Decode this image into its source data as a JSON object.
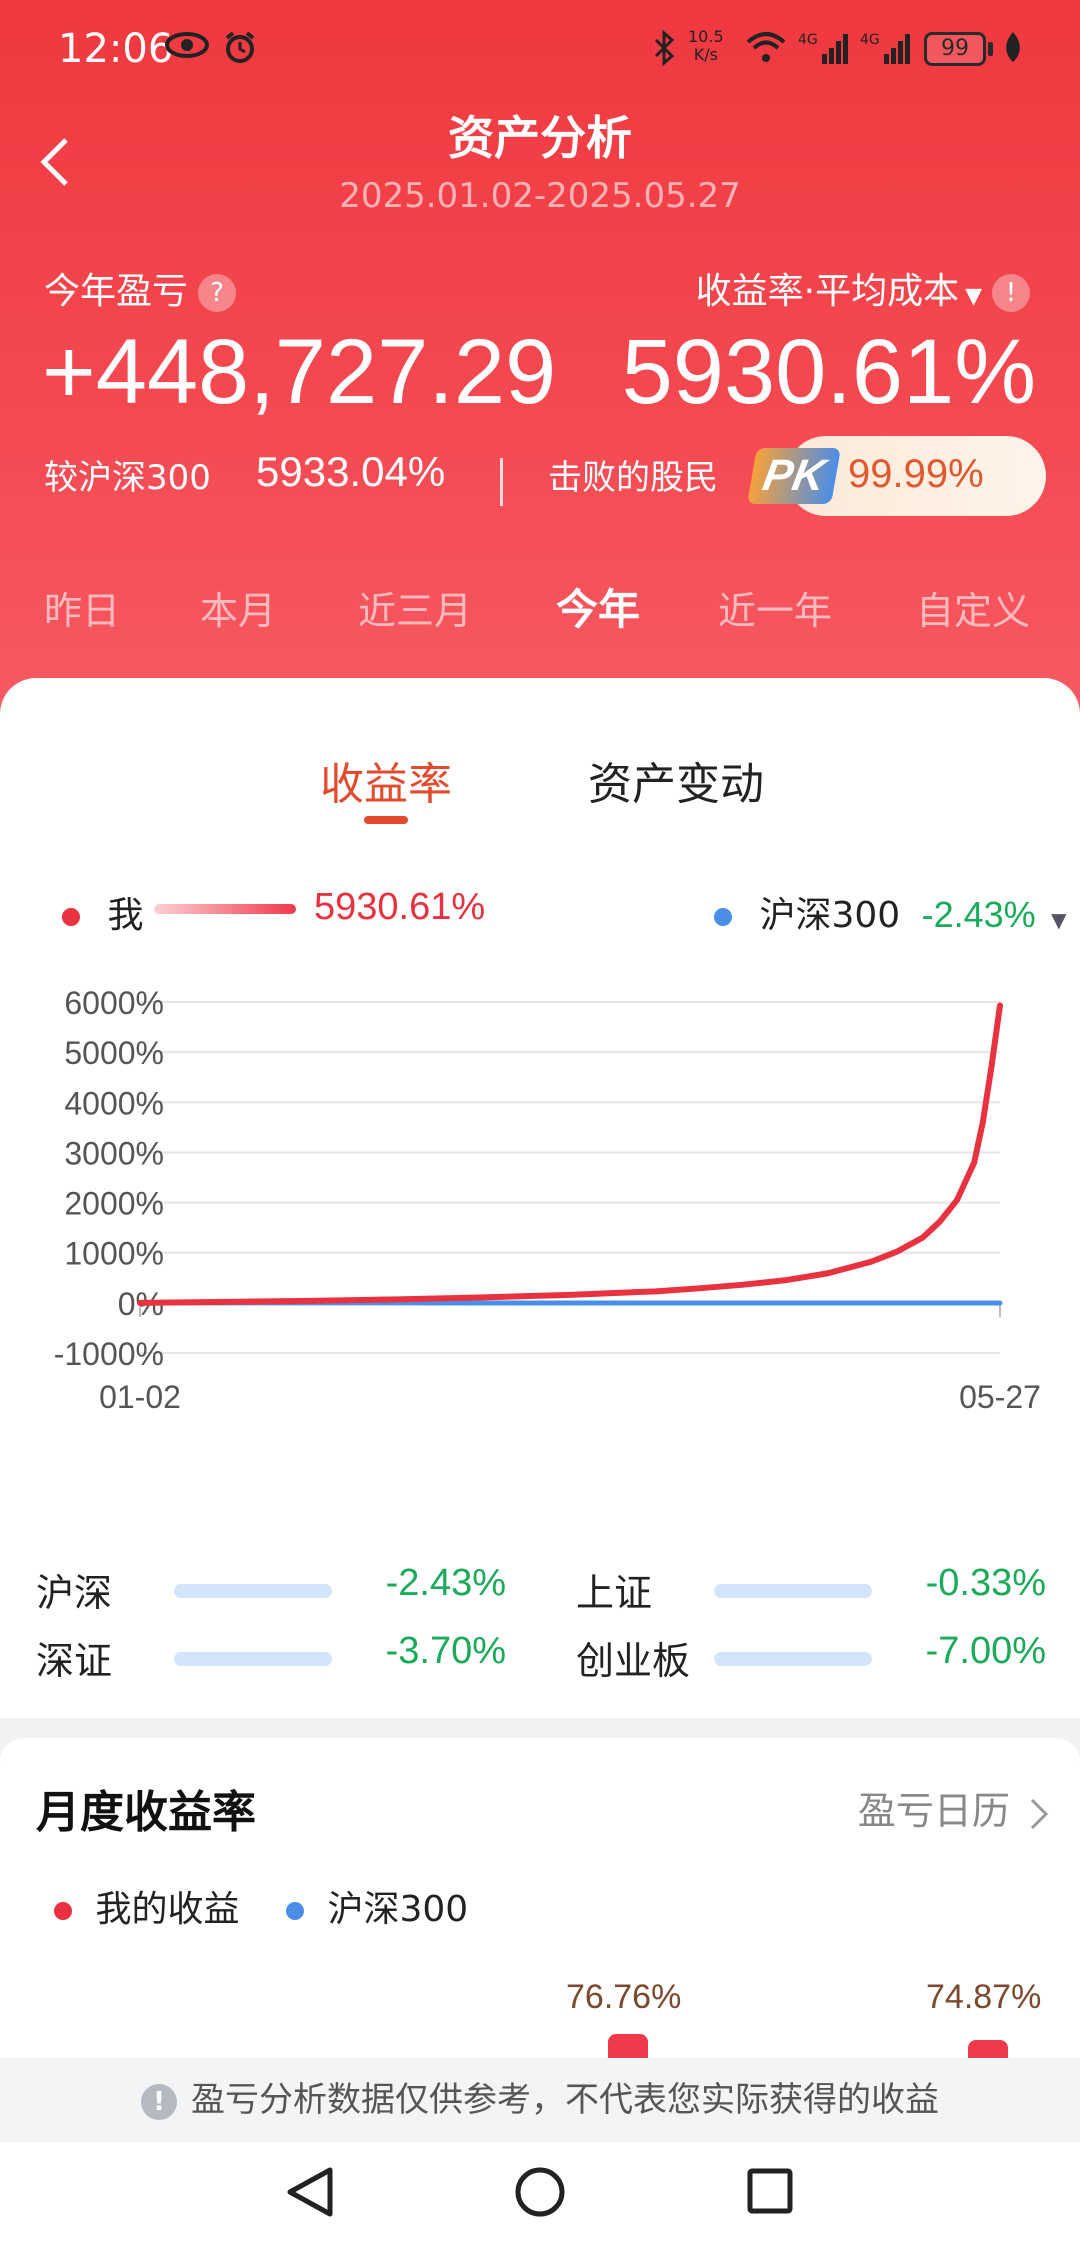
{
  "status_bar": {
    "time": "12:06",
    "net_speed_value": "10.5",
    "net_speed_unit": "K/s",
    "battery": "99"
  },
  "header": {
    "title": "资产分析",
    "date_range": "2025.01.02-2025.05.27"
  },
  "summary": {
    "pnl_label": "今年盈亏",
    "pnl_help": "?",
    "pnl_value": "+448,727.29",
    "rate_label": "收益率·平均成本",
    "rate_info": "!",
    "rate_value": "5930.61%",
    "vs_hs300_label": "较沪深300",
    "vs_hs300_value": "5933.04%",
    "beat_label": "击败的股民",
    "pk": "PK",
    "beat_value": "99.99%"
  },
  "period_tabs": [
    {
      "label": "昨日",
      "active": false
    },
    {
      "label": "本月",
      "active": false
    },
    {
      "label": "近三月",
      "active": false
    },
    {
      "label": "今年",
      "active": true
    },
    {
      "label": "近一年",
      "active": false
    },
    {
      "label": "自定义",
      "active": false
    }
  ],
  "chart_tabs": {
    "rate": "收益率",
    "asset_change": "资产变动"
  },
  "legend": {
    "me_label": "我",
    "me_value": "5930.61%",
    "bench_label": "沪深300",
    "bench_value": "-2.43%"
  },
  "colors": {
    "me": "#e8323f",
    "bench": "#4a8ee8",
    "up": "#e8323f",
    "down": "#1aaa5a"
  },
  "chart_data": {
    "type": "line",
    "x_start_label": "01-02",
    "x_end_label": "05-27",
    "yticks": [
      "6000%",
      "5000%",
      "4000%",
      "3000%",
      "2000%",
      "1000%",
      "0%",
      "-1000%"
    ],
    "ylim": [
      -1000,
      6000
    ],
    "grid": true,
    "series": [
      {
        "name": "我",
        "color": "#e8323f",
        "x": [
          0,
          0.1,
          0.2,
          0.3,
          0.4,
          0.5,
          0.6,
          0.65,
          0.7,
          0.75,
          0.8,
          0.85,
          0.88,
          0.91,
          0.93,
          0.95,
          0.97,
          0.98,
          0.99,
          1.0
        ],
        "values": [
          0,
          20,
          40,
          70,
          110,
          160,
          230,
          290,
          360,
          450,
          590,
          820,
          1020,
          1300,
          1620,
          2050,
          2800,
          3600,
          4700,
          5930.61
        ]
      },
      {
        "name": "沪深300",
        "color": "#4a8ee8",
        "x": [
          0,
          0.2,
          0.4,
          0.6,
          0.8,
          1.0
        ],
        "values": [
          0,
          -1,
          -2,
          -3,
          -2.5,
          -2.43
        ]
      }
    ]
  },
  "indices": [
    {
      "name": "沪深",
      "value": "-2.43%"
    },
    {
      "name": "上证",
      "value": "-0.33%"
    },
    {
      "name": "深证",
      "value": "-3.70%"
    },
    {
      "name": "创业板",
      "value": "-7.00%"
    }
  ],
  "monthly": {
    "title": "月度收益率",
    "calendar_link": "盈亏日历",
    "legend_me": "我的收益",
    "legend_bench": "沪深300",
    "values": [
      "76.76%",
      "74.87%"
    ]
  },
  "notice": {
    "icon": "!",
    "text": "盈亏分析数据仅供参考，不代表您实际获得的收益"
  }
}
